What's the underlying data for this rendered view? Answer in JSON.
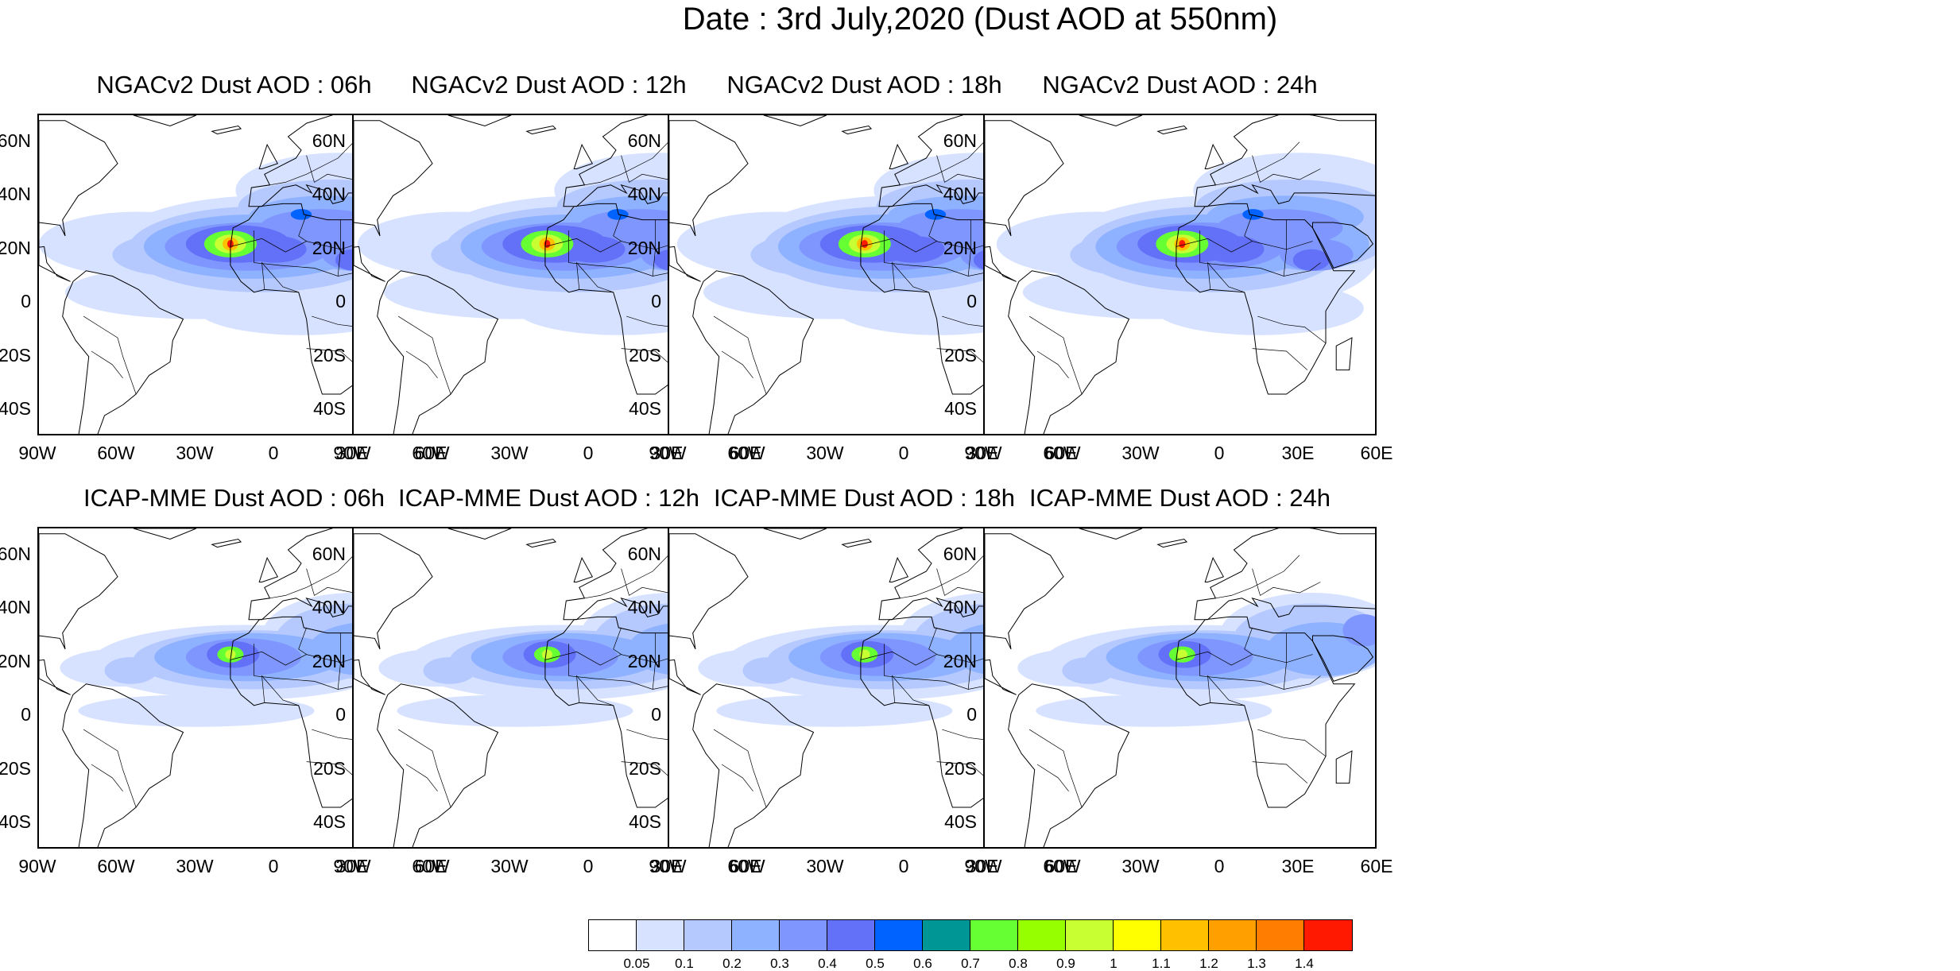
{
  "title": "Date : 3rd July,2020 (Dust AOD at 550nm)",
  "panels": [
    {
      "title": "NGACv2 Dust AOD : 06h",
      "model": "NGACv2"
    },
    {
      "title": "NGACv2 Dust AOD : 12h",
      "model": "NGACv2"
    },
    {
      "title": "NGACv2 Dust AOD : 18h",
      "model": "NGACv2"
    },
    {
      "title": "NGACv2 Dust AOD : 24h",
      "model": "NGACv2"
    },
    {
      "title": "ICAP-MME Dust AOD : 06h",
      "model": "ICAP-MME"
    },
    {
      "title": "ICAP-MME Dust AOD : 12h",
      "model": "ICAP-MME"
    },
    {
      "title": "ICAP-MME Dust AOD : 18h",
      "model": "ICAP-MME"
    },
    {
      "title": "ICAP-MME Dust AOD : 24h",
      "model": "ICAP-MME"
    }
  ],
  "lat_labels": [
    "60N",
    "40N",
    "20N",
    "0",
    "20S",
    "40S"
  ],
  "lon_labels": [
    "90W",
    "60W",
    "30W",
    "0",
    "30E",
    "60E"
  ],
  "map_extent": {
    "lon": [
      -90,
      60
    ],
    "lat": [
      -50,
      70
    ]
  },
  "colorbar": {
    "labels": [
      "0.05",
      "0.1",
      "0.2",
      "0.3",
      "0.4",
      "0.5",
      "0.6",
      "0.7",
      "0.8",
      "0.9",
      "1",
      "1.1",
      "1.2",
      "1.3",
      "1.4"
    ],
    "colors": [
      "#ffffff",
      "#d6e2ff",
      "#b5c9ff",
      "#8eb2ff",
      "#7f96ff",
      "#6370f8",
      "#0063ff",
      "#009696",
      "#66ff33",
      "#96ff00",
      "#c8ff32",
      "#ffff00",
      "#ffc000",
      "#ffa000",
      "#ff7d00",
      "#ff1900"
    ]
  }
}
